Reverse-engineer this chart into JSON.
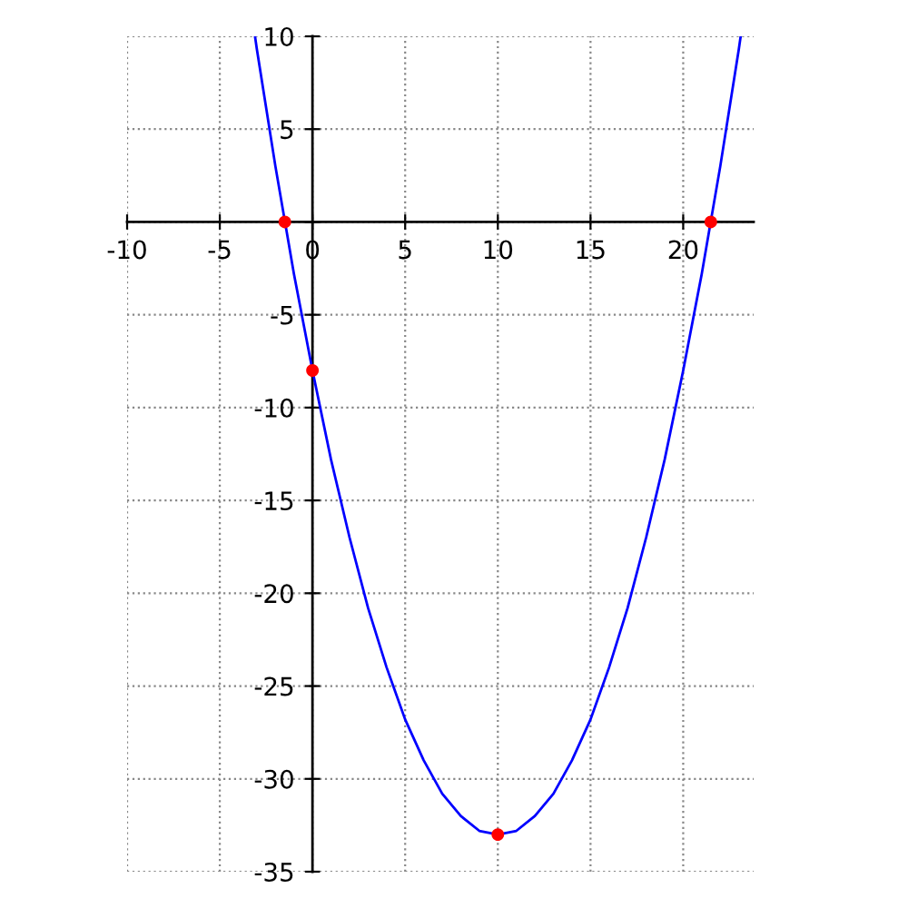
{
  "chart_data": {
    "type": "line",
    "xlim": [
      -10,
      23.8
    ],
    "ylim": [
      -35,
      10
    ],
    "xticks": [
      -10,
      -5,
      0,
      5,
      10,
      15,
      20
    ],
    "yticks": [
      -35,
      -30,
      -25,
      -20,
      -15,
      -10,
      -5,
      {
        "value": 0,
        "label": null
      },
      5,
      10
    ],
    "grid": true,
    "line_style": "solid",
    "marker": "none",
    "series": [
      {
        "color": "#0000ff",
        "x": [
          -3.1,
          -3,
          -2,
          -1,
          0,
          1,
          2,
          3,
          4,
          5,
          6,
          7,
          8,
          9,
          10,
          11,
          12,
          13,
          14,
          15,
          16,
          17,
          18,
          19,
          20,
          21,
          22,
          23,
          23.1
        ],
        "values": [
          10,
          9.3,
          3,
          -2.8,
          -8,
          -12.8,
          -17,
          -20.8,
          -24,
          -26.8,
          -29,
          -30.8,
          -32,
          -32.8,
          -33,
          -32.8,
          -32,
          -30.8,
          -29,
          -26.8,
          -24,
          -20.8,
          -17,
          -12.8,
          -8,
          -2.8,
          3,
          9.3,
          10
        ]
      },
      {
        "type": "scatter",
        "color": "#ff0000",
        "marker": "circle",
        "x": [
          -1.49,
          0,
          10,
          21.49
        ],
        "values": [
          0,
          -8,
          -33,
          0
        ]
      }
    ]
  }
}
